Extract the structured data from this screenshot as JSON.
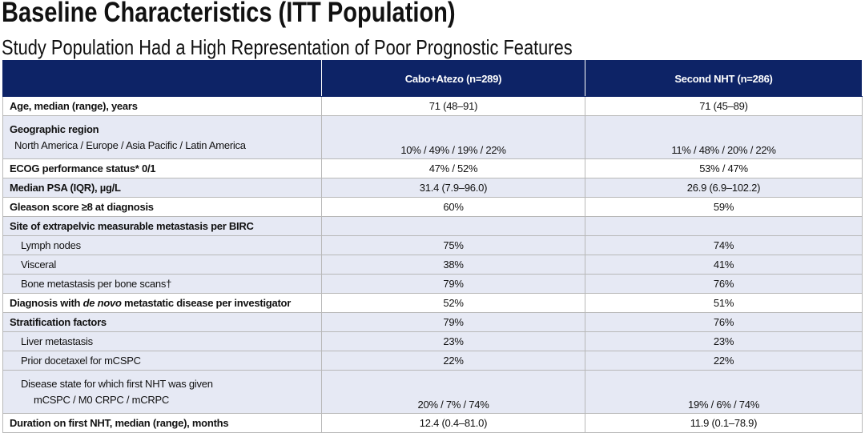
{
  "header": {
    "title": "Baseline Characteristics (ITT Population)",
    "subtitle": "Study Population Had a High Representation of Poor Prognostic Features"
  },
  "table": {
    "columns": [
      "Cabo+Atezo (n=289)",
      "Second NHT (n=286)"
    ],
    "rows": [
      [
        "Age, median (range), years",
        "71 (48–91)",
        "71 (45–89)"
      ],
      [
        "Geographic region",
        "North America / Europe / Asia Pacific / Latin America",
        "10% / 49% / 19% / 22%",
        "11% / 48% / 20% / 22%"
      ],
      [
        "ECOG performance status* 0/1",
        "47% / 52%",
        "53% / 47%"
      ],
      [
        "Median PSA (IQR), µg/L",
        "31.4 (7.9–96.0)",
        "26.9 (6.9–102.2)"
      ],
      [
        "Gleason score ≥8 at diagnosis",
        "60%",
        "59%"
      ],
      [
        "Site of extrapelvic measurable metastasis per BIRC"
      ],
      [
        "Lymph nodes",
        "75%",
        "74%"
      ],
      [
        "Visceral",
        "38%",
        "41%"
      ],
      [
        "Bone metastasis per bone scans†",
        "79%",
        "76%"
      ],
      [
        [
          "Diagnosis with ",
          "de novo",
          " metastatic disease per investigator"
        ],
        "52%",
        "51%"
      ],
      [
        "Stratification factors",
        "79%",
        "76%"
      ],
      [
        "Liver metastasis",
        "23%",
        "23%"
      ],
      [
        "Prior docetaxel for mCSPC",
        "22%",
        "22%"
      ],
      [
        "Disease state for which first NHT was given",
        "mCSPC / M0 CRPC / mCRPC",
        "20% / 7% / 74%",
        "19% / 6% / 74%"
      ],
      [
        "Duration on first NHT, median (range), months",
        "12.4 (0.4–81.0)",
        "11.9 (0.1–78.9)"
      ]
    ]
  }
}
